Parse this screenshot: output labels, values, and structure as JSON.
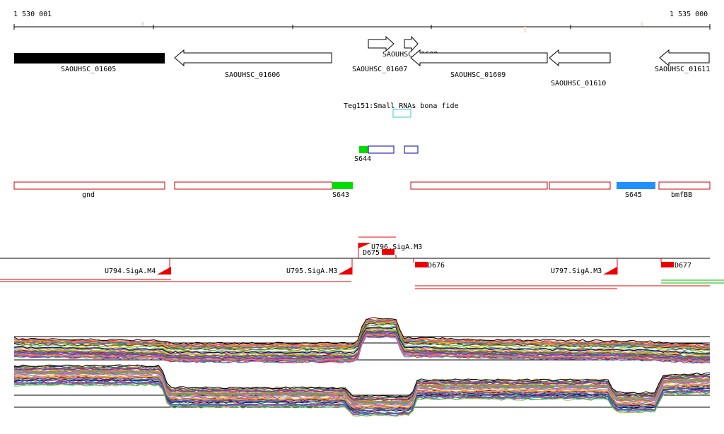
{
  "ruler": {
    "start_label": "1 530 001",
    "end_label": "1 535 000",
    "start": 1530001,
    "end": 1535000
  },
  "small_rna_track": {
    "label": "Teg151:Small RNAs bona fide",
    "color": "#33cccc"
  },
  "genes": [
    {
      "id": "gene-01605",
      "label": "SAOUHSC_01605",
      "style": "filled",
      "strand": "none"
    },
    {
      "id": "gene-01606",
      "label": "SAOUHSC_01606",
      "style": "outline",
      "strand": "-"
    },
    {
      "id": "gene-01607",
      "label": "SAOUHSC_01607",
      "style": "outline",
      "strand": "+"
    },
    {
      "id": "gene-01608",
      "label": "SAOUHSC_01608",
      "style": "outline",
      "strand": "+"
    },
    {
      "id": "gene-01609",
      "label": "SAOUHSC_01609",
      "style": "outline",
      "strand": "-"
    },
    {
      "id": "gene-01610",
      "label": "SAOUHSC_01610",
      "style": "outline",
      "strand": "-"
    },
    {
      "id": "gene-01611",
      "label": "SAOUHSC_01611",
      "style": "outline",
      "strand": "-"
    }
  ],
  "segments_track_1": [
    {
      "label": "S644",
      "color": "#00dd00",
      "type": "filled"
    },
    {
      "label": "",
      "color": "#0000aa",
      "type": "outline"
    },
    {
      "label": "",
      "color": "#0000aa",
      "type": "outline"
    }
  ],
  "segments_track_2": [
    {
      "label": "gnd",
      "color": "#cc0000",
      "type": "outline"
    },
    {
      "label": "",
      "color": "#cc0000",
      "type": "outline"
    },
    {
      "label": "S643",
      "color": "#00dd00",
      "type": "filled"
    },
    {
      "label": "",
      "color": "#cc0000",
      "type": "outline"
    },
    {
      "label": "",
      "color": "#cc0000",
      "type": "outline"
    },
    {
      "label": "S645",
      "color": "#1e90ff",
      "type": "filled"
    },
    {
      "label": "bmfBB",
      "color": "#cc0000",
      "type": "outline"
    }
  ],
  "promoters": [
    {
      "label": "U794.SigA.M4"
    },
    {
      "label": "U795.SigA.M3"
    },
    {
      "label": "U796.SigA.M3"
    },
    {
      "label": "U797.SigA.M3"
    }
  ],
  "terminators": [
    {
      "label": "D675"
    },
    {
      "label": "D676"
    },
    {
      "label": "D677"
    }
  ],
  "colors": {
    "gene_outline": "#000000",
    "red_feature": "#ee0000",
    "green_feature": "#00dd00",
    "blue_feature": "#1e90ff"
  }
}
